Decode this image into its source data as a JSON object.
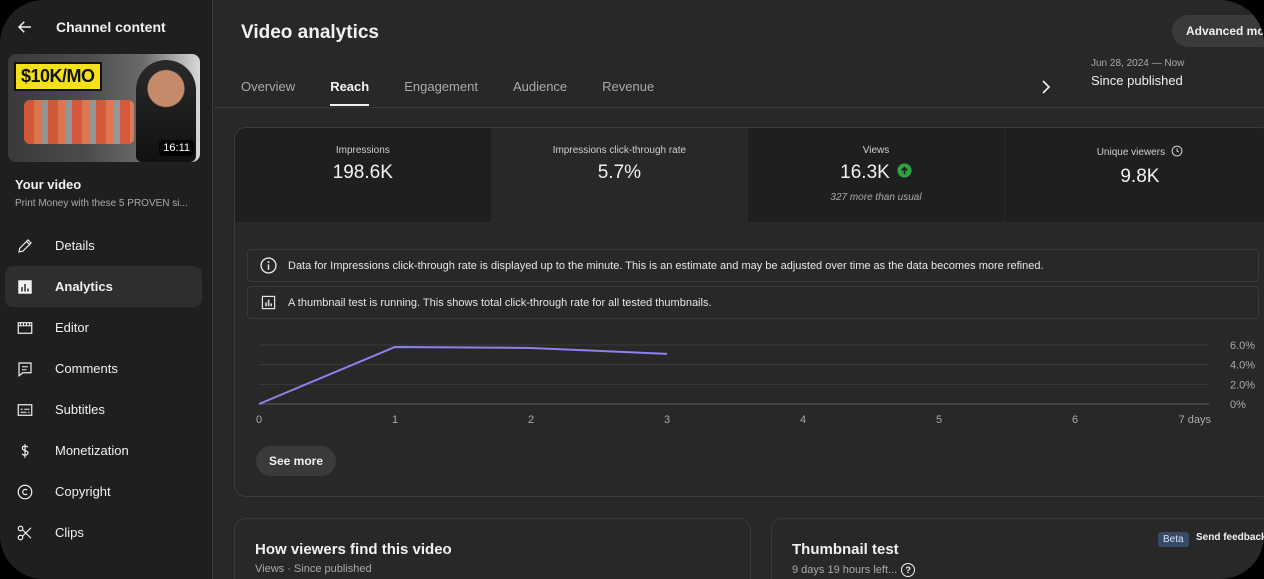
{
  "sidebar": {
    "title": "Channel content",
    "thumbnail": {
      "tag_text": "$10K/MO",
      "duration": "16:11"
    },
    "your_video_label": "Your video",
    "video_title": "Print Money with these 5 PROVEN si...",
    "items": [
      {
        "label": "Details",
        "icon": "pencil-icon"
      },
      {
        "label": "Analytics",
        "icon": "analytics-icon",
        "active": true
      },
      {
        "label": "Editor",
        "icon": "film-icon"
      },
      {
        "label": "Comments",
        "icon": "comment-icon"
      },
      {
        "label": "Subtitles",
        "icon": "subtitles-icon"
      },
      {
        "label": "Monetization",
        "icon": "dollar-icon"
      },
      {
        "label": "Copyright",
        "icon": "copyright-icon"
      },
      {
        "label": "Clips",
        "icon": "scissors-icon"
      }
    ]
  },
  "header": {
    "title": "Video analytics",
    "advanced_button": "Advanced mo"
  },
  "tabs": [
    {
      "label": "Overview"
    },
    {
      "label": "Reach",
      "active": true
    },
    {
      "label": "Engagement"
    },
    {
      "label": "Audience"
    },
    {
      "label": "Revenue"
    }
  ],
  "date_range": {
    "range": "Jun 28, 2024 — Now",
    "label": "Since published"
  },
  "metrics": [
    {
      "label": "Impressions",
      "value": "198.6K",
      "note": ""
    },
    {
      "label": "Impressions click-through rate",
      "value": "5.7%",
      "note": ""
    },
    {
      "label": "Views",
      "value": "16.3K",
      "note": "327 more than usual"
    },
    {
      "label": "Unique viewers",
      "value": "9.8K",
      "note": ""
    }
  ],
  "notices": [
    "Data for Impressions click-through rate is displayed up to the minute. This is an estimate and may be adjusted over time as the data becomes more refined.",
    "A thumbnail test is running. This shows total click-through rate for all tested thumbnails."
  ],
  "chart_data": {
    "type": "line",
    "x": [
      0,
      1,
      2,
      3
    ],
    "series": [
      {
        "values": [
          0.0,
          5.8,
          5.7,
          5.1
        ]
      }
    ],
    "x_ticks": [
      "0",
      "1",
      "2",
      "3",
      "4",
      "5",
      "6",
      "7 days"
    ],
    "y_ticks": [
      "0%",
      "2.0%",
      "4.0%",
      "6.0%"
    ],
    "xlim": [
      0,
      7
    ],
    "ylim": [
      0,
      6.0
    ],
    "color": "#8c82f0",
    "grid": true
  },
  "see_more": "See more",
  "bottom_cards": {
    "left": {
      "title": "How viewers find this video",
      "subtitle": "Views · Since published"
    },
    "right": {
      "title": "Thumbnail test",
      "subtitle": "9 days 19 hours left...",
      "badge": "Beta",
      "feedback": "Send feedback"
    }
  }
}
